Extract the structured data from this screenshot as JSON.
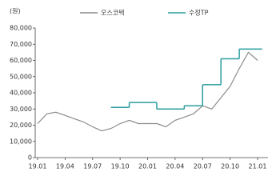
{
  "chart_data": {
    "type": "line",
    "y_unit_label": "(원)",
    "x": [
      "19.01",
      "19.02",
      "19.03",
      "19.04",
      "19.05",
      "19.06",
      "19.07",
      "19.08",
      "19.09",
      "19.10",
      "19.11",
      "19.12",
      "20.01",
      "20.02",
      "20.03",
      "20.04",
      "20.05",
      "20.06",
      "20.07",
      "20.08",
      "20.09",
      "20.10",
      "20.11",
      "20.12",
      "21.01"
    ],
    "xticks": [
      "19.01",
      "19.04",
      "19.07",
      "19.10",
      "20.01",
      "20.04",
      "20.07",
      "20.10",
      "21.01"
    ],
    "series": [
      {
        "name": "오스코텍",
        "color": "#8c8c8c",
        "step": false,
        "values": [
          21000,
          27000,
          28000,
          26000,
          24000,
          22000,
          19000,
          16500,
          18000,
          21000,
          23000,
          21000,
          21000,
          21000,
          19000,
          23000,
          25000,
          27000,
          32000,
          30000,
          37000,
          44000,
          55000,
          65000,
          60000
        ]
      },
      {
        "name": "수정TP",
        "color": "#2a9d9f",
        "step": true,
        "values": [
          null,
          null,
          null,
          null,
          null,
          null,
          null,
          null,
          31000,
          31000,
          34000,
          34000,
          34000,
          30000,
          30000,
          30000,
          32000,
          32000,
          45000,
          45000,
          61000,
          61000,
          67000,
          67000,
          67000
        ]
      }
    ],
    "ylim": [
      0,
      80000
    ],
    "yticks": [
      0,
      {
        "value": 10000,
        "label": "10,000"
      },
      {
        "value": 20000,
        "label": "20,000"
      },
      {
        "value": 30000,
        "label": "30,000"
      },
      {
        "value": 40000,
        "label": "40,000"
      },
      {
        "value": 50000,
        "label": "50,000"
      },
      {
        "value": 60000,
        "label": "60,000"
      },
      {
        "value": 70000,
        "label": "70,000"
      },
      {
        "value": 80000,
        "label": "80,000"
      }
    ],
    "grid": false
  }
}
